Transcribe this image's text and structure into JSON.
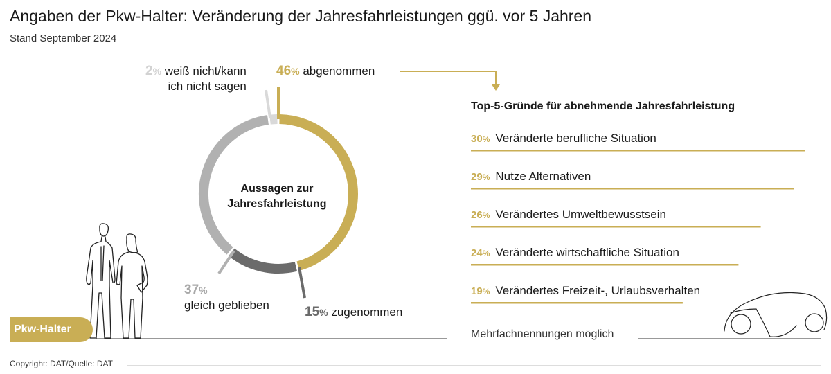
{
  "header": {
    "title": "Angaben der Pkw-Halter: Veränderung der Jahresfahrleistungen ggü. vor 5 Jahren",
    "subtitle": "Stand September 2024"
  },
  "chart_data": [
    {
      "type": "pie",
      "title": "Aussagen zur Jahresfahrleistung",
      "center_label_lines": [
        "Aussagen zur",
        "Jahresfahrleistung"
      ],
      "slices": [
        {
          "label": "abgenommen",
          "value": 46,
          "pct_text": "46",
          "color": "#c9ae55"
        },
        {
          "label": "zugenommen",
          "value": 15,
          "pct_text": "15",
          "color": "#6b6b6b"
        },
        {
          "label": "gleich geblieben",
          "value": 37,
          "pct_text": "37",
          "color": "#b1b1b1"
        },
        {
          "label": "weiß nicht/kann ich nicht sagen",
          "label_lines": [
            "weiß nicht/kann",
            "ich nicht sagen"
          ],
          "value": 2,
          "pct_text": "2",
          "color": "#d9d9d9"
        }
      ]
    },
    {
      "type": "bar",
      "title": "Top-5-Gründe für abnehmende Jahresfahrleistung",
      "categories": [
        "Veränderte berufliche Situation",
        "Nutze Alternativen",
        "Verändertes Umweltbewusstsein",
        "Veränderte wirtschaftliche Situation",
        "Verändertes Freizeit-, Urlaubsverhalten"
      ],
      "values": [
        30,
        29,
        26,
        24,
        19
      ],
      "xlim": [
        0,
        30
      ],
      "color": "#c9ae55"
    }
  ],
  "pct_symbol": "%",
  "notes": {
    "multiple": "Mehrfachnennungen möglich"
  },
  "badge": {
    "label": "Pkw-Halter"
  },
  "footer": {
    "copyright": "Copyright: DAT/Quelle: DAT"
  },
  "colors": {
    "accent": "#c9ae55",
    "dark_gray": "#6b6b6b",
    "mid_gray": "#b1b1b1",
    "light_gray": "#d9d9d9"
  },
  "icons": {
    "people": "people-silhouette-icon",
    "car": "car-outline-icon"
  }
}
